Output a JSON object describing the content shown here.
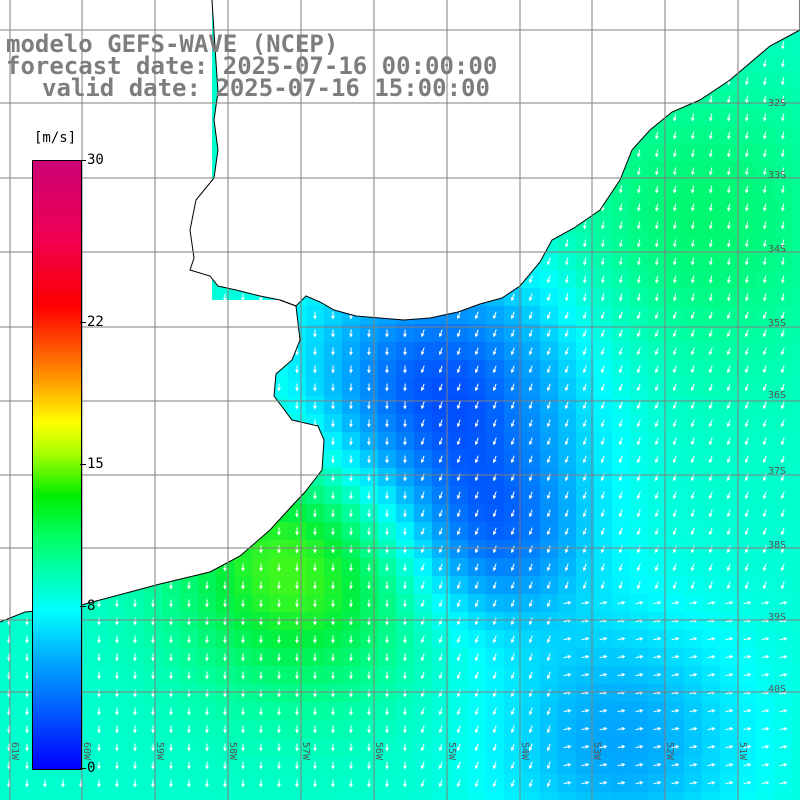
{
  "titles": {
    "model": "modelo GEFS-WAVE (NCEP)",
    "forecast": "forecast date: 2025-07-16 00:00:00",
    "valid": "valid date: 2025-07-16 15:00:00"
  },
  "colorbar": {
    "units": "[m/s]",
    "ticks": [
      {
        "label": "30",
        "value": 30
      },
      {
        "label": "22",
        "value": 22
      },
      {
        "label": "15",
        "value": 15
      },
      {
        "label": "8",
        "value": 8
      },
      {
        "label": "0",
        "value": 0
      }
    ],
    "min": 0,
    "max": 30
  },
  "map": {
    "lon_labels": [
      "61W",
      "60W",
      "59W",
      "58W",
      "57W",
      "56W",
      "55W",
      "54W",
      "53W",
      "52W",
      "51W"
    ],
    "lat_labels": [
      "32S",
      "33S",
      "34S",
      "35S",
      "36S",
      "37S",
      "38S",
      "39S",
      "40S"
    ],
    "field": "wind speed with direction arrows",
    "colors": {
      "land": "#ffffff",
      "grid": "#7f7f7f",
      "coast": "#000000",
      "title": "#7d7d7d",
      "arrows": "#ffffff"
    }
  }
}
